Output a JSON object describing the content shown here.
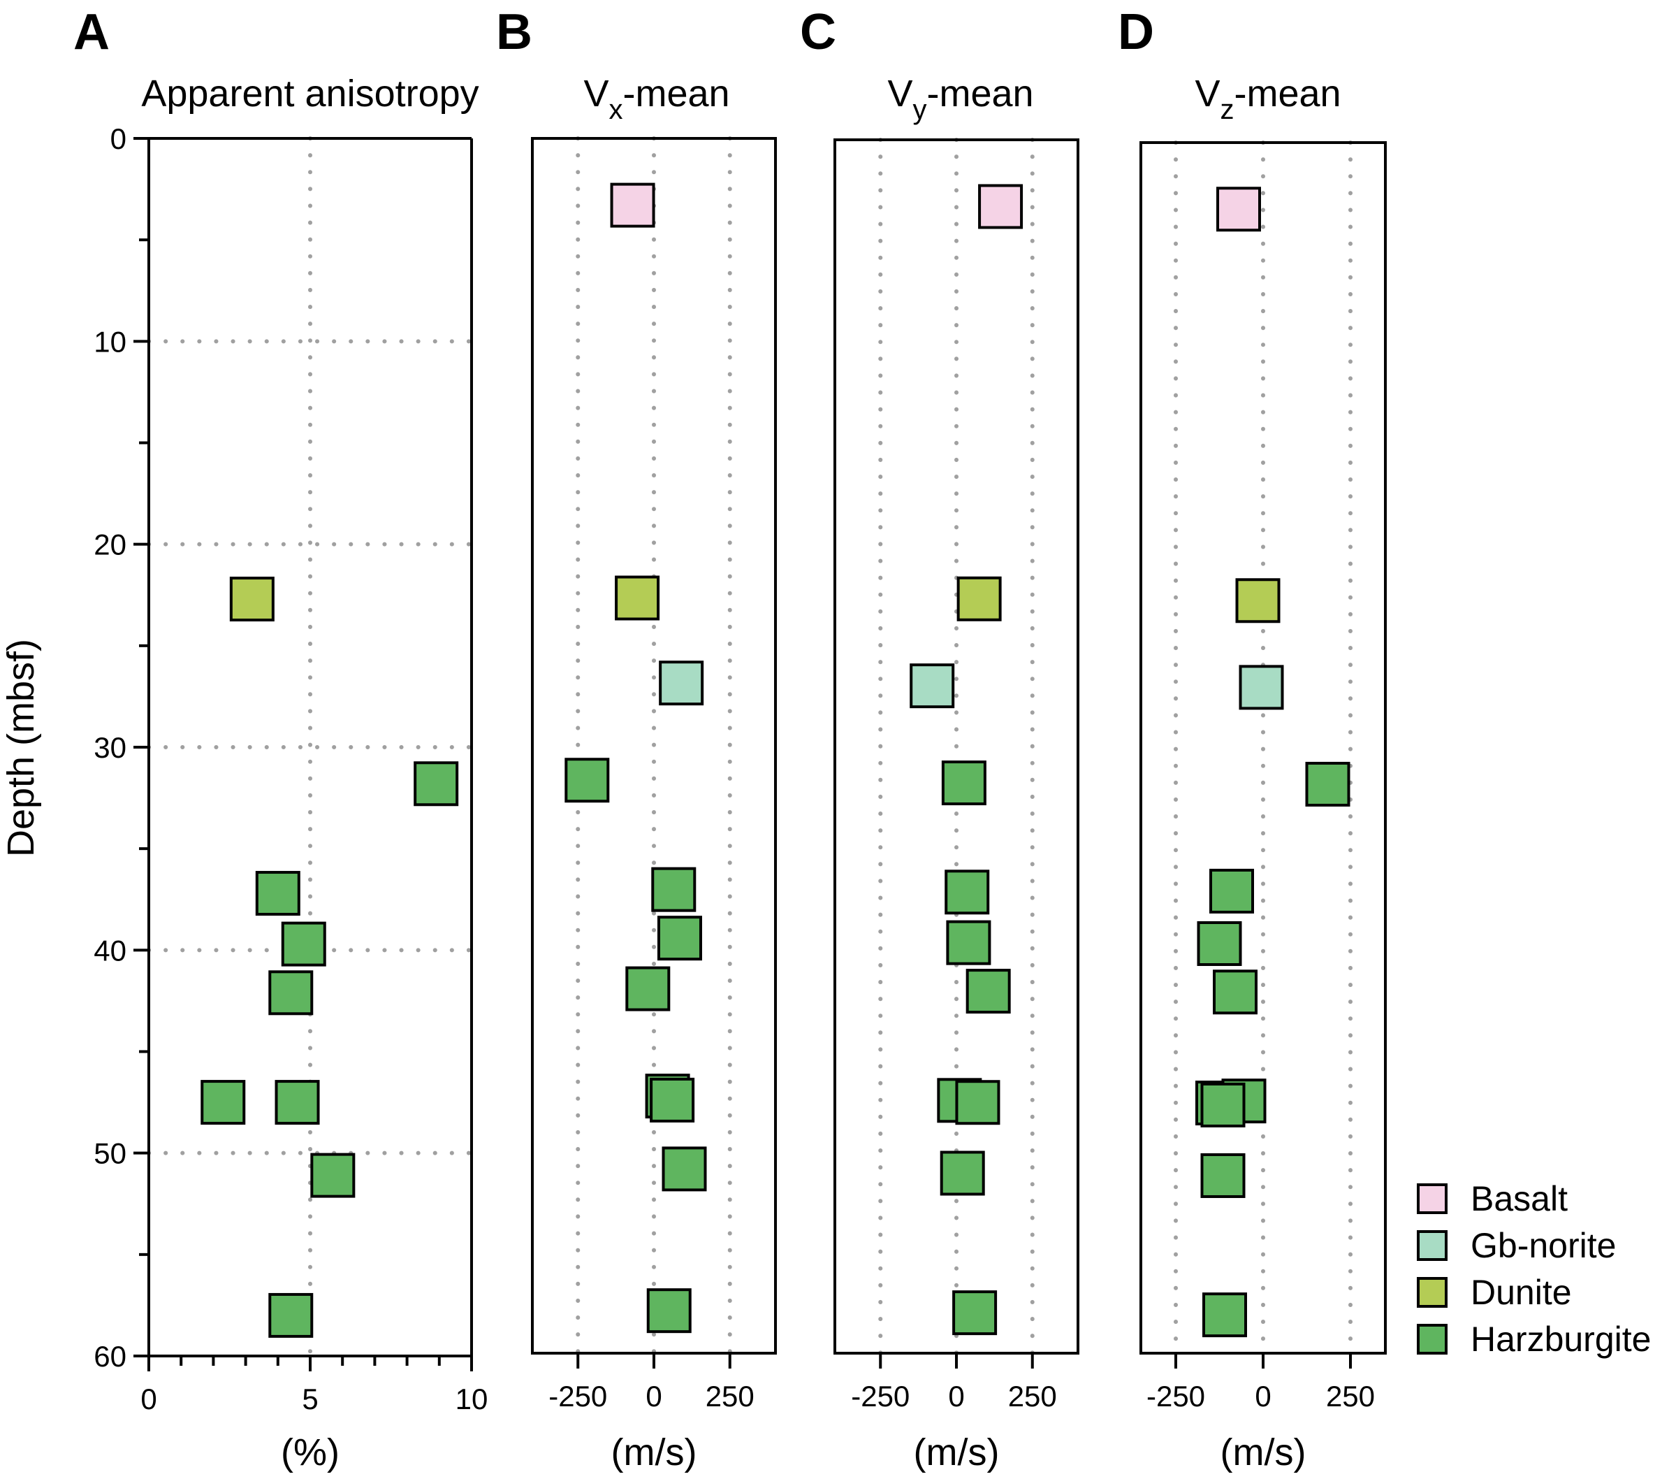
{
  "chart_data": {
    "type": "scatter",
    "y_axis": {
      "label": "Depth (mbsf)",
      "range": [
        0,
        60
      ],
      "ticks": [
        0,
        10,
        20,
        30,
        40,
        50,
        60
      ],
      "inverted": true
    },
    "legend": {
      "placement": "bottom-right",
      "items": [
        {
          "name": "Basalt",
          "color": "#f5d3e6"
        },
        {
          "name": "Gb-norite",
          "color": "#a8dcc4"
        },
        {
          "name": "Dunite",
          "color": "#b4cc55"
        },
        {
          "name": "Harzburgite",
          "color": "#5fb55f"
        }
      ]
    },
    "panels": [
      {
        "id": "A",
        "letter": "A",
        "title": "Apparent anisotropy",
        "title_main": "Apparent anisotropy",
        "title_sub": "",
        "title_tail": "",
        "unit": "(%)",
        "xlim": [
          0,
          10
        ],
        "xticks": [
          0,
          5,
          10
        ],
        "x_tick_labels": [
          "0",
          "5",
          "10"
        ],
        "minor_xticks": [
          1,
          2,
          3,
          4,
          6,
          7,
          8,
          9
        ],
        "grid": {
          "x": [
            5
          ],
          "y": [
            10,
            20,
            30,
            40,
            50
          ]
        },
        "points": [
          {
            "rock": "Dunite",
            "x": 3.2,
            "depth": 22.7
          },
          {
            "rock": "Harzburgite",
            "x": 8.9,
            "depth": 31.8
          },
          {
            "rock": "Harzburgite",
            "x": 4.0,
            "depth": 37.2
          },
          {
            "rock": "Harzburgite",
            "x": 4.8,
            "depth": 39.7
          },
          {
            "rock": "Harzburgite",
            "x": 4.4,
            "depth": 42.1
          },
          {
            "rock": "Harzburgite",
            "x": 2.3,
            "depth": 47.5
          },
          {
            "rock": "Harzburgite",
            "x": 4.6,
            "depth": 47.5
          },
          {
            "rock": "Harzburgite",
            "x": 5.7,
            "depth": 51.1
          },
          {
            "rock": "Harzburgite",
            "x": 4.4,
            "depth": 58.0
          }
        ]
      },
      {
        "id": "B",
        "letter": "B",
        "title_main": "V",
        "title_sub": "x",
        "title_tail": "-mean",
        "unit": "(m/s)",
        "xlim": [
          -400,
          400
        ],
        "xticks": [
          -250,
          0,
          250
        ],
        "x_tick_labels": [
          "-250",
          "0",
          "250"
        ],
        "minor_xticks": [],
        "grid": {
          "x": [
            -250,
            0,
            250
          ],
          "y": []
        },
        "points": [
          {
            "rock": "Basalt",
            "x": -70,
            "depth": 3.3
          },
          {
            "rock": "Dunite",
            "x": -55,
            "depth": 22.7
          },
          {
            "rock": "Gb-norite",
            "x": 90,
            "depth": 26.9
          },
          {
            "rock": "Harzburgite",
            "x": -220,
            "depth": 31.7
          },
          {
            "rock": "Harzburgite",
            "x": 65,
            "depth": 37.1
          },
          {
            "rock": "Harzburgite",
            "x": 85,
            "depth": 39.5
          },
          {
            "rock": "Harzburgite",
            "x": -20,
            "depth": 42.0
          },
          {
            "rock": "Harzburgite",
            "x": 45,
            "depth": 47.3
          },
          {
            "rock": "Harzburgite",
            "x": 60,
            "depth": 47.5
          },
          {
            "rock": "Harzburgite",
            "x": 100,
            "depth": 50.9
          },
          {
            "rock": "Harzburgite",
            "x": 50,
            "depth": 57.9
          }
        ]
      },
      {
        "id": "C",
        "letter": "C",
        "title_main": "V",
        "title_sub": "y",
        "title_tail": "-mean",
        "unit": "(m/s)",
        "xlim": [
          -400,
          400
        ],
        "xticks": [
          -250,
          0,
          250
        ],
        "x_tick_labels": [
          "-250",
          "0",
          "250"
        ],
        "minor_xticks": [],
        "grid": {
          "x": [
            -250,
            0,
            250
          ],
          "y": []
        },
        "points": [
          {
            "rock": "Basalt",
            "x": 145,
            "depth": 3.3
          },
          {
            "rock": "Dunite",
            "x": 75,
            "depth": 22.7
          },
          {
            "rock": "Gb-norite",
            "x": -80,
            "depth": 27.0
          },
          {
            "rock": "Harzburgite",
            "x": 25,
            "depth": 31.8
          },
          {
            "rock": "Harzburgite",
            "x": 35,
            "depth": 37.2
          },
          {
            "rock": "Harzburgite",
            "x": 40,
            "depth": 39.7
          },
          {
            "rock": "Harzburgite",
            "x": 105,
            "depth": 42.1
          },
          {
            "rock": "Harzburgite",
            "x": 10,
            "depth": 47.5
          },
          {
            "rock": "Harzburgite",
            "x": 70,
            "depth": 47.6
          },
          {
            "rock": "Harzburgite",
            "x": 20,
            "depth": 51.1
          },
          {
            "rock": "Harzburgite",
            "x": 60,
            "depth": 58.0
          }
        ]
      },
      {
        "id": "D",
        "letter": "D",
        "title_main": "V",
        "title_sub": "z",
        "title_tail": "-mean",
        "unit": "(m/s)",
        "xlim": [
          -350,
          350
        ],
        "xticks": [
          -250,
          0,
          250
        ],
        "x_tick_labels": [
          "-250",
          "0",
          "250"
        ],
        "minor_xticks": [],
        "grid": {
          "x": [
            -250,
            0,
            250
          ],
          "y": []
        },
        "points": [
          {
            "rock": "Basalt",
            "x": -70,
            "depth": 3.3
          },
          {
            "rock": "Dunite",
            "x": -15,
            "depth": 22.7
          },
          {
            "rock": "Gb-norite",
            "x": -5,
            "depth": 27.0
          },
          {
            "rock": "Harzburgite",
            "x": 185,
            "depth": 31.8
          },
          {
            "rock": "Harzburgite",
            "x": -90,
            "depth": 37.1
          },
          {
            "rock": "Harzburgite",
            "x": -125,
            "depth": 39.7
          },
          {
            "rock": "Harzburgite",
            "x": -80,
            "depth": 42.1
          },
          {
            "rock": "Harzburgite",
            "x": -130,
            "depth": 47.6
          },
          {
            "rock": "Harzburgite",
            "x": -55,
            "depth": 47.5
          },
          {
            "rock": "Harzburgite",
            "x": -115,
            "depth": 47.7
          },
          {
            "rock": "Harzburgite",
            "x": -115,
            "depth": 51.2
          },
          {
            "rock": "Harzburgite",
            "x": -110,
            "depth": 58.1
          }
        ]
      }
    ]
  }
}
